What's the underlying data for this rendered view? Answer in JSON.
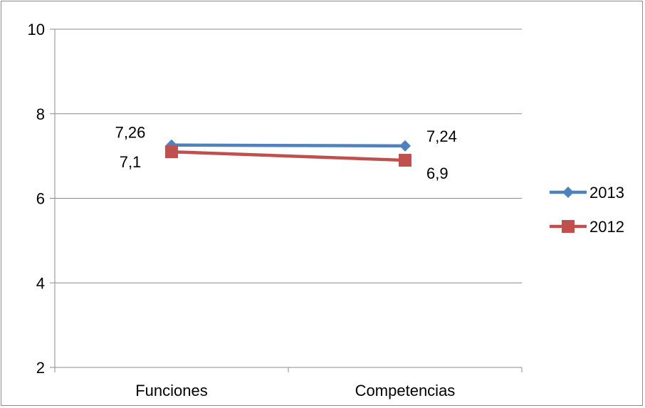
{
  "chart_data": {
    "type": "line",
    "categories": [
      "Funciones",
      "Competencias"
    ],
    "series": [
      {
        "name": "2013",
        "values": [
          7.26,
          7.24
        ],
        "labels": [
          "7,26",
          "7,24"
        ],
        "color": "#4F81BD",
        "marker": "diamond"
      },
      {
        "name": "2012",
        "values": [
          7.1,
          6.9
        ],
        "labels": [
          "7,1",
          "6,9"
        ],
        "color": "#C0504D",
        "marker": "square"
      }
    ],
    "yticks": [
      {
        "value": 2,
        "label": "2"
      },
      {
        "value": 4,
        "label": "4"
      },
      {
        "value": 6,
        "label": "6"
      },
      {
        "value": 8,
        "label": "8"
      },
      {
        "value": 10,
        "label": "10"
      }
    ],
    "ylim": [
      2,
      10
    ],
    "grid": true,
    "legend": "right",
    "title": "",
    "xlabel": "",
    "ylabel": ""
  }
}
